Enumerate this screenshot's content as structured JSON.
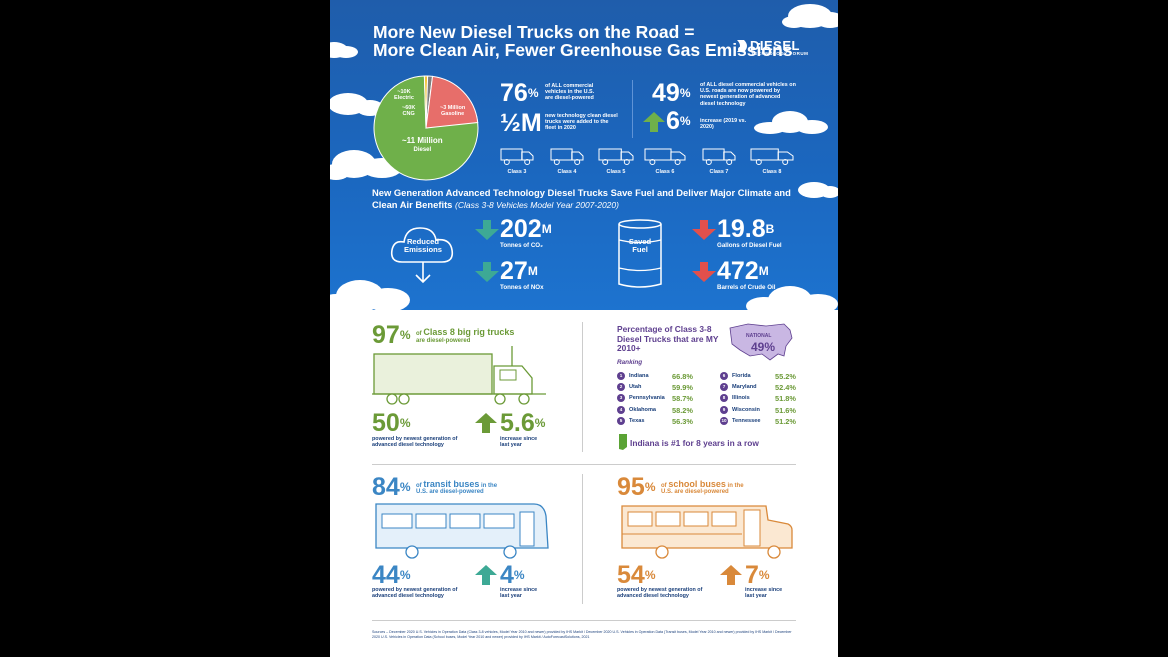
{
  "title_line1": "More New Diesel Trucks on the Road =",
  "title_line2": "More Clean Air, Fewer Greenhouse Gas Emissions",
  "logo": {
    "name": "DIESEL",
    "sub": "TECHNOLOGY FORUM"
  },
  "pie": {
    "slices": [
      {
        "label": "~11 Million",
        "sub": "Diesel",
        "value": 11,
        "color": "#6fb04a"
      },
      {
        "label": "~3 Million",
        "sub": "Gasoline",
        "value": 3,
        "color": "#e76e6a"
      },
      {
        "label": "~60K",
        "sub": "CNG",
        "value": 0.06,
        "color": "#7d7d7d"
      },
      {
        "label": "~10K",
        "sub": "Electric",
        "value": 0.01,
        "color": "#f0c23b"
      }
    ]
  },
  "stats_top": {
    "s1_value": "76",
    "s1_unit": "%",
    "s1_text": "of ALL commercial vehicles in the U.S. are diesel-powered",
    "s2_value": "½M",
    "s2_text": "new technology clean diesel trucks were added to the fleet in 2020",
    "s3_value": "49",
    "s3_unit": "%",
    "s3_text": "of ALL diesel commercial vehicles on U.S. roads are now powered by newest generation of advanced diesel technology",
    "s4_value": "6",
    "s4_unit": "%",
    "s4_text": "increase (2019 vs. 2020)"
  },
  "classes": [
    "Class 3",
    "Class 4",
    "Class 5",
    "Class 6",
    "Class 7",
    "Class 8"
  ],
  "benefits": {
    "heading": "New Generation Advanced Technology Diesel Trucks Save Fuel and Deliver Major Climate and",
    "heading2": "Clean Air Benefits",
    "heading2_note": "(Class 3-8 Vehicles Model Year 2007-2020)",
    "reduced_label": "Reduced Emissions",
    "co2_value": "202",
    "co2_unit": "M",
    "co2_label": "Tonnes of CO₂",
    "nox_value": "27",
    "nox_unit": "M",
    "nox_label": "Tonnes of NOx",
    "saved_label": "Saved Fuel",
    "gal_value": "19.8",
    "gal_unit": "B",
    "gal_label": "Gallons of Diesel Fuel",
    "bar_value": "472",
    "bar_unit": "M",
    "bar_label": "Barrels of Crude Oil"
  },
  "class8": {
    "pct": "97",
    "unit": "%",
    "text_pre": "of",
    "text_bold": "Class 8 big rig trucks",
    "text_sub": "are diesel-powered",
    "newest_pct": "50",
    "newest_text": "powered by newest generation of advanced diesel technology",
    "inc_pct": "5.6",
    "inc_text": "increase since last year"
  },
  "ranking": {
    "title": "Percentage of Class 3-8 Diesel Trucks that are MY 2010+",
    "national_label": "NATIONAL",
    "national_value": "49%",
    "ranking_label": "Ranking",
    "rows": [
      {
        "rank": "1",
        "state": "Indiana",
        "value": "66.8%"
      },
      {
        "rank": "2",
        "state": "Utah",
        "value": "59.9%"
      },
      {
        "rank": "3",
        "state": "Pennsylvania",
        "value": "58.7%"
      },
      {
        "rank": "4",
        "state": "Oklahoma",
        "value": "58.2%"
      },
      {
        "rank": "5",
        "state": "Texas",
        "value": "56.3%"
      },
      {
        "rank": "6",
        "state": "Florida",
        "value": "55.2%"
      },
      {
        "rank": "7",
        "state": "Maryland",
        "value": "52.4%"
      },
      {
        "rank": "8",
        "state": "Illinois",
        "value": "51.8%"
      },
      {
        "rank": "9",
        "state": "Wisconsin",
        "value": "51.6%"
      },
      {
        "rank": "10",
        "state": "Tennessee",
        "value": "51.2%"
      }
    ],
    "footer": "Indiana is #1 for 8 years in a row"
  },
  "transit": {
    "pct": "84",
    "unit": "%",
    "text_pre": "of",
    "text_bold": "transit buses",
    "text_post": "in the",
    "text_sub": "U.S. are diesel-powered",
    "newest_pct": "44",
    "newest_text": "powered by newest generation of advanced diesel technology",
    "inc_pct": "4",
    "inc_text": "increase since last year"
  },
  "school": {
    "pct": "95",
    "unit": "%",
    "text_pre": "of",
    "text_bold": "school buses",
    "text_post": "in the",
    "text_sub": "U.S. are diesel-powered",
    "newest_pct": "54",
    "newest_text": "powered by newest generation of advanced diesel technology",
    "inc_pct": "7",
    "inc_text": "increase since last year"
  },
  "sources": "Sources – December 2020 U.S. Vehicles in Operation Data (Class 3-8 vehicles, Model Year 2010 and newer) provided by IHS Markit / December 2020 U.S. Vehicles in Operation Data (Transit buses, Model Year 2010 and newer) provided by IHS Markit / December 2020 U.S. Vehicles in Operation Data (School buses, Model Year 2010 and newer) provided by IHS Markit / AutoForecastSolutions, 2021"
}
